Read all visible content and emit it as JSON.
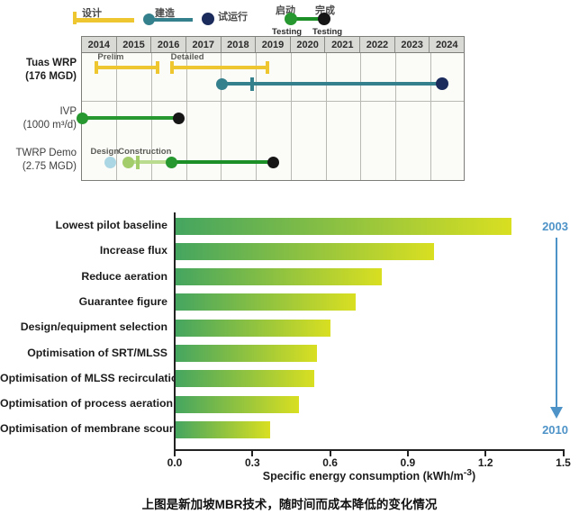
{
  "colors": {
    "yellow": "#eec62f",
    "teal": "#35808d",
    "navy": "#1b2c5c",
    "green": "#27982f",
    "dark_green": "#1d8f27",
    "light_green": "#a3cc6b",
    "light_green_line": "#b9dc8e",
    "light_blue": "#abd7e4",
    "black": "#161616",
    "bar_start": "#44a560",
    "bar_end": "#d9df21",
    "arrow_blue": "#4e93c8"
  },
  "gantt_legend": {
    "design": "设计",
    "construction": "建造",
    "commissioning": "试运行",
    "start": "启动",
    "start_sub": "Testing",
    "complete": "完成",
    "complete_sub": "Testing"
  },
  "chart_data": [
    {
      "type": "gantt",
      "years": [
        "2014",
        "2015",
        "2016",
        "2017",
        "2018",
        "2019",
        "2020",
        "2021",
        "2022",
        "2023",
        "2024"
      ],
      "rows": [
        {
          "id": "tuas",
          "label_lines": [
            "Tuas WRP",
            "(176 MGD)"
          ],
          "bold": true
        },
        {
          "id": "ivp",
          "label_lines": [
            "IVP",
            "(1000 m³/d)"
          ],
          "bold": false
        },
        {
          "id": "twrp",
          "label_lines": [
            "TWRP Demo",
            "(2.75 MGD)"
          ],
          "bold": false
        }
      ],
      "marks": [
        {
          "lane": "tuas_design",
          "type": "capbar",
          "color_key": "yellow",
          "start": 2014.45,
          "end": 2016.2,
          "label": "Prelim",
          "label_anchor": 2014.85
        },
        {
          "lane": "tuas_design",
          "type": "capbar",
          "color_key": "yellow",
          "start": 2016.6,
          "end": 2019.35,
          "label": "Detailed",
          "label_anchor": 2017.05
        },
        {
          "lane": "tuas_build",
          "type": "span",
          "color_key": "teal",
          "start": 2018.05,
          "end": 2024.35,
          "start_marker": "teal",
          "end_marker": "navy",
          "tick": 2018.9,
          "tick_color": "teal"
        },
        {
          "lane": "ivp",
          "type": "span",
          "color_key": "green",
          "start": 2014.05,
          "end": 2016.8,
          "start_marker": "green",
          "end_marker": "black"
        },
        {
          "lane": "twrp",
          "type": "dot",
          "color_key": "light_blue",
          "at": 2014.85,
          "label": "Design",
          "label_anchor": 2014.68
        },
        {
          "lane": "twrp",
          "type": "span",
          "color_key": "light_green_line",
          "start": 2015.35,
          "end": 2016.6,
          "start_marker": "light_green",
          "tick": 2015.62,
          "tick_color": "light_green",
          "label": "Construction",
          "label_anchor": 2015.83
        },
        {
          "lane": "twrp",
          "type": "span",
          "color_key": "dark_green",
          "start": 2016.6,
          "end": 2019.5,
          "start_marker": "green",
          "end_marker": "black"
        }
      ]
    },
    {
      "type": "bar",
      "categories": [
        "Lowest pilot baseline",
        "Increase flux",
        "Reduce aeration",
        "Guarantee figure",
        "Design/equipment selection",
        "Optimisation of SRT/MLSS",
        "Optimisation of MLSS recirculation",
        "Optimisation of process aeration",
        "Optimisation of membrane scouring"
      ],
      "values": [
        1.3,
        1.0,
        0.8,
        0.7,
        0.6,
        0.55,
        0.54,
        0.48,
        0.37
      ],
      "xticks": [
        "0.0",
        "0.3",
        "0.6",
        "0.9",
        "1.2",
        "1.5"
      ],
      "xlim": [
        0,
        1.5
      ],
      "xlabel_prefix": "Specific energy consumption (kWh/m",
      "xlabel_sup": "-3",
      "xlabel_suffix": ")",
      "start_year": "2003",
      "end_year": "2010",
      "legend_position": "none",
      "grid": false
    }
  ],
  "caption": "上图是新加坡MBR技术，随时间而成本降低的变化情况"
}
